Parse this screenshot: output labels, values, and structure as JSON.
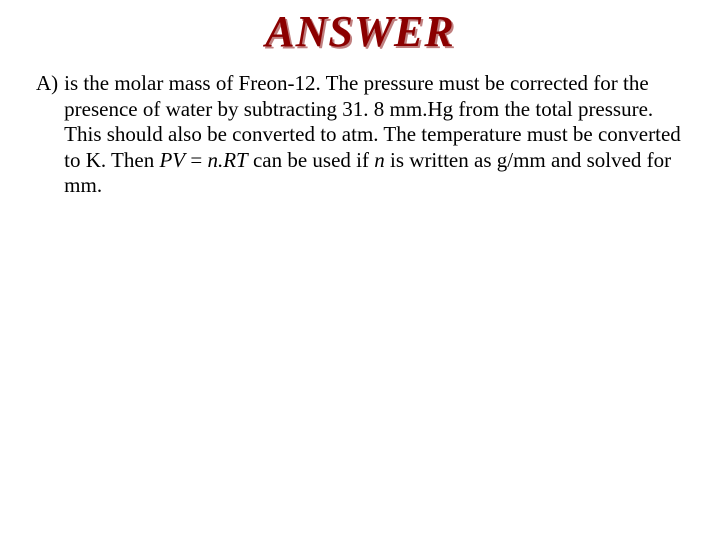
{
  "title": "ANSWER",
  "title_color": "#8b0000",
  "title_shadow": "#c08080",
  "item": {
    "label": "A)",
    "t1": "is the molar mass of Freon-12.  The pressure must be corrected for the presence of water by subtracting 31. 8 mm.Hg from the total pressure.  This should also be converted to atm.  The temperature must be converted to K.  Then ",
    "eq1": "PV",
    "eq2": " = ",
    "eq3": "n.RT",
    "t2": " can be used if ",
    "eq4": "n",
    "t3": " is written as g/mm and solved for mm."
  },
  "font_family": "Times New Roman",
  "background_color": "#ffffff",
  "text_color": "#000000",
  "body_fontsize": 21
}
